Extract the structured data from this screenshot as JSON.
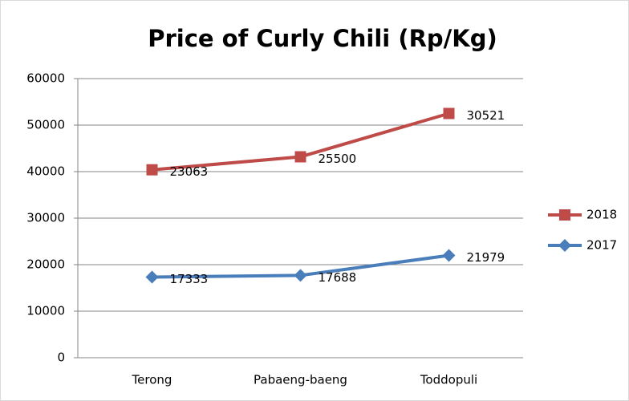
{
  "chart_data": {
    "type": "line",
    "stacked": true,
    "title": "Price of Curly Chili (Rp/Kg)",
    "categories": [
      "Terong",
      "Pabaeng-baeng",
      "Toddopuli"
    ],
    "series": [
      {
        "name": "2017",
        "color": "#4a7ebb",
        "marker": "diamond",
        "values": [
          17333,
          17688,
          21979
        ]
      },
      {
        "name": "2018",
        "color": "#be4b48",
        "marker": "square",
        "values": [
          23063,
          25500,
          30521
        ]
      }
    ],
    "ylim": [
      0,
      60000
    ],
    "yticks": [
      0,
      10000,
      20000,
      30000,
      40000,
      50000,
      60000
    ],
    "grid": true,
    "legend": "right"
  }
}
